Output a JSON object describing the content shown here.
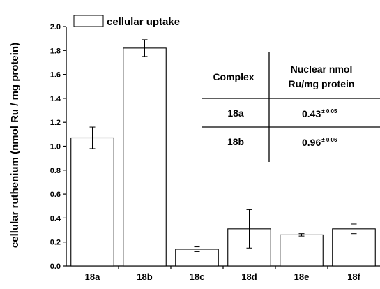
{
  "chart_data": {
    "type": "bar",
    "categories": [
      "18a",
      "18b",
      "18c",
      "18d",
      "18e",
      "18f"
    ],
    "series": [
      {
        "name": "cellular uptake",
        "values": [
          1.07,
          1.82,
          0.14,
          0.31,
          0.26,
          0.31
        ],
        "errors": [
          0.09,
          0.07,
          0.02,
          0.16,
          0.01,
          0.04
        ]
      }
    ],
    "ylabel": "cellular ruthenium (nmol Ru / mg protein)",
    "xlabel": "",
    "ylim": [
      0,
      2.0
    ],
    "yticks": [
      "0.0",
      "0.2",
      "0.4",
      "0.6",
      "0.8",
      "1.0",
      "1.2",
      "1.4",
      "1.6",
      "1.8",
      "2.0"
    ],
    "legend_position": "top-left",
    "grid": false,
    "bar_fill": "#ffffff",
    "bar_stroke": "#000000",
    "inset_table": {
      "headers": [
        "Complex",
        "Nuclear nmol",
        "Ru/mg protein"
      ],
      "rows": [
        {
          "complex": "18a",
          "value": "0.43",
          "error": "± 0.05"
        },
        {
          "complex": "18b",
          "value": "0.96",
          "error": "± 0.06"
        }
      ]
    }
  }
}
